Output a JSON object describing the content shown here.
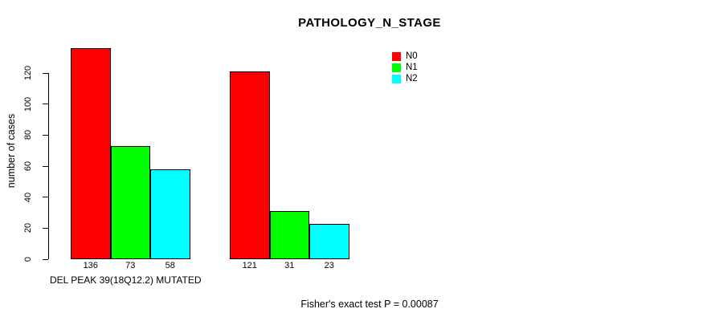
{
  "chart_data": {
    "type": "bar",
    "title": "PATHOLOGY_N_STAGE",
    "ylabel": "number of cases",
    "xlabel": "DEL PEAK 39(18Q12.2) MUTATED",
    "footnote": "Fisher's exact test P = 0.00087",
    "ylim": [
      0,
      140
    ],
    "yticks": [
      0,
      20,
      40,
      60,
      80,
      100,
      120
    ],
    "grid": false,
    "legend_position": "top-right",
    "categories": [
      "",
      ""
    ],
    "series": [
      {
        "name": "N0",
        "color": "#FF0000",
        "values": [
          136,
          121
        ]
      },
      {
        "name": "N1",
        "color": "#00FF00",
        "values": [
          73,
          31
        ]
      },
      {
        "name": "N2",
        "color": "#00FFFF",
        "values": [
          58,
          23
        ]
      }
    ],
    "bar_value_labels": [
      [
        136,
        121
      ],
      [
        73,
        31
      ],
      [
        58,
        23
      ]
    ],
    "background": "#FFFFFF",
    "text_color": "#000000"
  }
}
